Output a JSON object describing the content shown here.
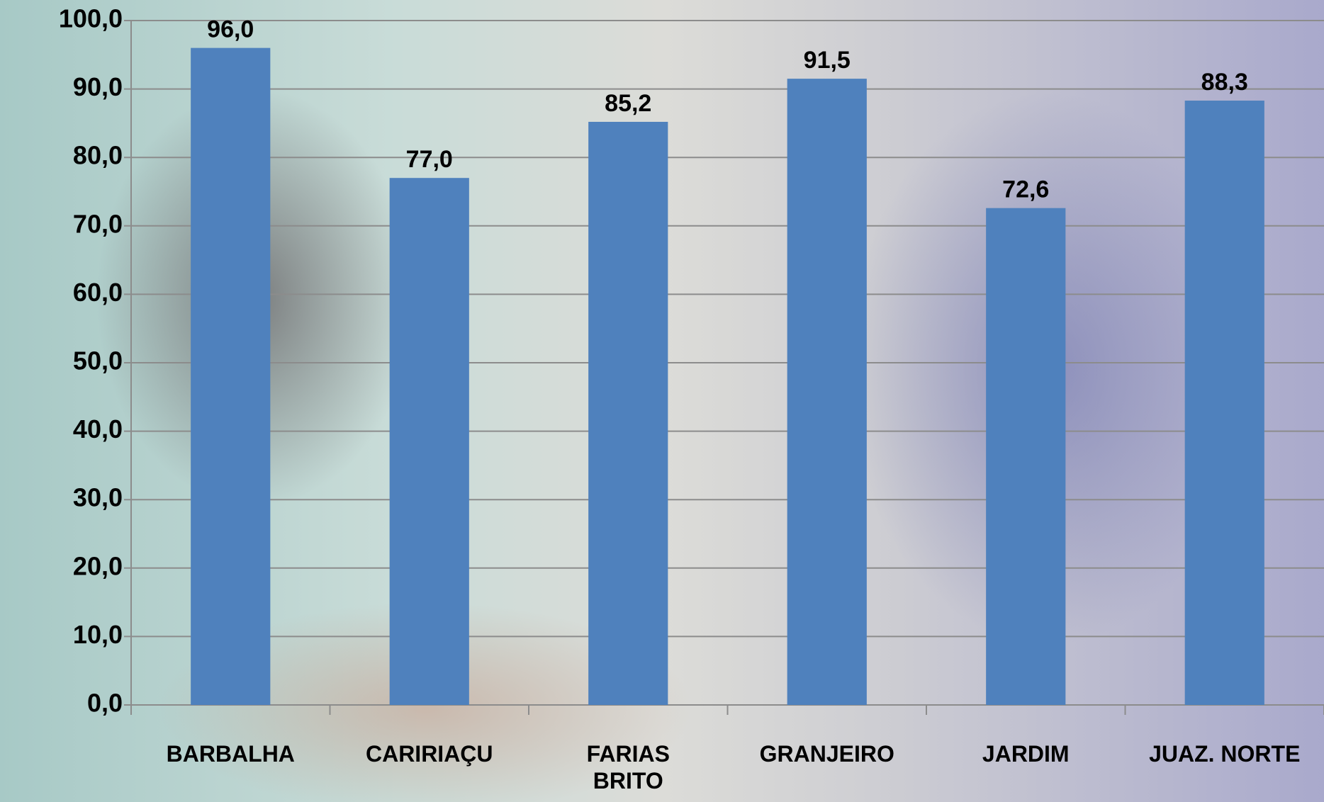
{
  "chart_data": {
    "type": "bar",
    "categories": [
      "BARBALHA",
      "CARIRIAÇU",
      "FARIAS BRITO",
      "GRANJEIRO",
      "JARDIM",
      "JUAZ. NORTE"
    ],
    "values": [
      96.0,
      77.0,
      85.2,
      91.5,
      72.6,
      88.3
    ],
    "value_labels": [
      "96,0",
      "77,0",
      "85,2",
      "91,5",
      "72,6",
      "88,3"
    ],
    "color": "#4f81bd",
    "ylim": [
      0,
      100
    ],
    "yticks": [
      {
        "value": 0,
        "label": "0,0"
      },
      {
        "value": 10,
        "label": "10,0"
      },
      {
        "value": 20,
        "label": "20,0"
      },
      {
        "value": 30,
        "label": "30,0"
      },
      {
        "value": 40,
        "label": "40,0"
      },
      {
        "value": 50,
        "label": "50,0"
      },
      {
        "value": 60,
        "label": "60,0"
      },
      {
        "value": 70,
        "label": "70,0"
      },
      {
        "value": 80,
        "label": "80,0"
      },
      {
        "value": 90,
        "label": "90,0"
      },
      {
        "value": 100,
        "label": "100,0"
      }
    ],
    "grid": true
  }
}
